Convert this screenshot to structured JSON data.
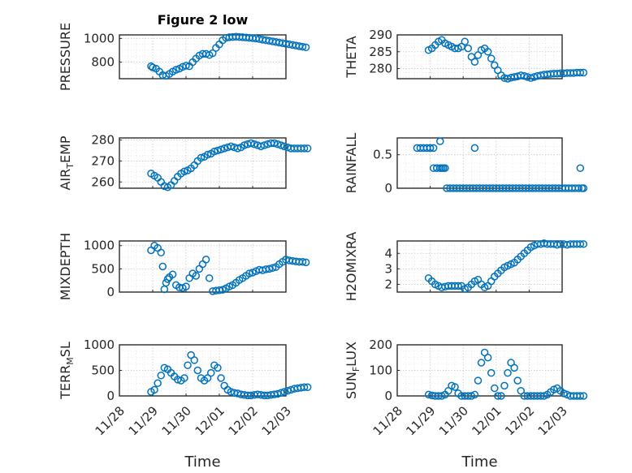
{
  "figure": {
    "title": "Figure 2 low",
    "x_tick_labels": [
      "11/28",
      "11/29",
      "11/30",
      "12/01",
      "12/02",
      "12/03"
    ],
    "x_label": "Time",
    "marker_color": "#0072BD"
  },
  "chart_data": [
    {
      "type": "scatter",
      "ylabel": "PRESSURE",
      "ylim": [
        660,
        1030
      ],
      "yticks": [
        800,
        1000
      ],
      "x": [
        0.95,
        1.0,
        1.1,
        1.2,
        1.3,
        1.4,
        1.5,
        1.6,
        1.7,
        1.8,
        1.9,
        2.0,
        2.1,
        2.2,
        2.3,
        2.4,
        2.5,
        2.6,
        2.7,
        2.8,
        2.9,
        3.0,
        3.1,
        3.2,
        3.3,
        3.4,
        3.5,
        3.6,
        3.7,
        3.8,
        3.9,
        4.0,
        4.1,
        4.2,
        4.3,
        4.4,
        4.5,
        4.6,
        4.7,
        4.8,
        4.9,
        5.0,
        5.1,
        5.2,
        5.3,
        5.4,
        5.5,
        5.6
      ],
      "y": [
        765,
        755,
        745,
        720,
        690,
        685,
        700,
        720,
        735,
        745,
        760,
        770,
        765,
        800,
        830,
        855,
        870,
        870,
        860,
        875,
        920,
        950,
        985,
        1005,
        1010,
        1012,
        1015,
        1012,
        1010,
        1008,
        1005,
        1003,
        1000,
        995,
        990,
        985,
        980,
        975,
        970,
        965,
        960,
        955,
        950,
        945,
        940,
        935,
        930,
        925
      ]
    },
    {
      "type": "scatter",
      "ylabel": "THETA",
      "ylim": [
        277,
        290
      ],
      "yticks": [
        280,
        285,
        290
      ],
      "x": [
        0.95,
        1.05,
        1.15,
        1.25,
        1.35,
        1.45,
        1.55,
        1.65,
        1.75,
        1.85,
        1.95,
        2.05,
        2.15,
        2.25,
        2.35,
        2.45,
        2.55,
        2.65,
        2.75,
        2.85,
        2.95,
        3.05,
        3.15,
        3.25,
        3.35,
        3.45,
        3.55,
        3.65,
        3.75,
        3.85,
        3.95,
        4.05,
        4.15,
        4.25,
        4.35,
        4.45,
        4.55,
        4.65,
        4.75,
        4.85,
        4.95,
        5.05,
        5.15,
        5.25,
        5.35,
        5.45,
        5.55,
        5.65
      ],
      "y": [
        285.5,
        286,
        287,
        288,
        288.5,
        287.5,
        287,
        286.5,
        286,
        286,
        286.5,
        288,
        286,
        283.5,
        282,
        284,
        285.5,
        286,
        285,
        283,
        281,
        279.5,
        278,
        277.2,
        277,
        277.3,
        277.5,
        277.7,
        278,
        277.8,
        277.5,
        277.2,
        277.5,
        277.8,
        278,
        278.2,
        278.3,
        278.4,
        278.5,
        278.5,
        278.6,
        278.6,
        278.7,
        278.7,
        278.7,
        278.8,
        278.8,
        278.8
      ]
    },
    {
      "type": "scatter",
      "ylabel": "AIR_TEMP",
      "ylim": [
        257,
        281
      ],
      "yticks": [
        260,
        270,
        280
      ],
      "x": [
        0.95,
        1.05,
        1.15,
        1.25,
        1.35,
        1.45,
        1.55,
        1.65,
        1.75,
        1.85,
        1.95,
        2.05,
        2.15,
        2.25,
        2.35,
        2.45,
        2.55,
        2.65,
        2.75,
        2.85,
        2.95,
        3.05,
        3.15,
        3.25,
        3.35,
        3.45,
        3.55,
        3.65,
        3.75,
        3.85,
        3.95,
        4.05,
        4.15,
        4.25,
        4.35,
        4.45,
        4.55,
        4.65,
        4.75,
        4.85,
        4.95,
        5.05,
        5.15,
        5.25,
        5.35,
        5.45,
        5.55,
        5.65
      ],
      "y": [
        264,
        263,
        262,
        260,
        258,
        257.5,
        258.5,
        260.5,
        262.5,
        264,
        265,
        265.5,
        266.5,
        268,
        270,
        271.5,
        272,
        273,
        273.5,
        274.5,
        275,
        275.5,
        276,
        276.5,
        277,
        276.5,
        276,
        276.5,
        277.5,
        278,
        278.5,
        278,
        277.5,
        277,
        277.5,
        278,
        278.5,
        278.5,
        278,
        277.5,
        277,
        276.5,
        276,
        276,
        276,
        276,
        276,
        276
      ]
    },
    {
      "type": "scatter",
      "ylabel": "RAINFALL",
      "ylim": [
        0,
        0.75
      ],
      "yticks": [
        0,
        0.5
      ],
      "x": [
        0.6,
        0.7,
        0.8,
        0.9,
        1.0,
        1.1,
        1.2,
        1.3,
        1.4,
        1.5,
        1.6,
        1.7,
        1.8,
        1.9,
        2.0,
        2.1,
        2.2,
        2.3,
        2.4,
        2.5,
        2.6,
        2.7,
        2.8,
        2.9,
        3.0,
        3.1,
        3.2,
        3.3,
        3.4,
        3.5,
        3.6,
        3.7,
        3.8,
        3.9,
        4.0,
        4.1,
        4.2,
        4.3,
        4.4,
        4.5,
        4.6,
        4.7,
        4.8,
        4.9,
        5.0,
        5.1,
        5.2,
        5.3,
        5.4,
        5.5,
        5.6,
        1.0,
        1.1,
        1.2,
        1.3,
        1.35,
        1.45,
        2.35,
        5.55,
        5.65
      ],
      "y": [
        0.6,
        0.6,
        0.6,
        0.6,
        0.6,
        0.3,
        0.3,
        0.3,
        0.3,
        0,
        0,
        0,
        0,
        0,
        0,
        0,
        0,
        0,
        0,
        0,
        0,
        0,
        0,
        0,
        0,
        0,
        0,
        0,
        0,
        0,
        0,
        0,
        0,
        0,
        0,
        0,
        0,
        0,
        0,
        0,
        0,
        0,
        0,
        0,
        0,
        0,
        0,
        0,
        0,
        0,
        0,
        0.6,
        0.6,
        0.3,
        0.7,
        0.3,
        0.3,
        0.6,
        0.3,
        0
      ]
    },
    {
      "type": "scatter",
      "ylabel": "MIXDEPTH",
      "ylim": [
        0,
        1100
      ],
      "yticks": [
        0,
        500,
        1000
      ],
      "x": [
        0.95,
        1.05,
        1.15,
        1.25,
        1.3,
        1.35,
        1.4,
        1.45,
        1.5,
        1.6,
        1.7,
        1.8,
        1.9,
        2.0,
        2.1,
        2.2,
        2.3,
        2.4,
        2.5,
        2.6,
        2.7,
        2.8,
        2.9,
        3.0,
        3.1,
        3.2,
        3.3,
        3.4,
        3.5,
        3.6,
        3.7,
        3.8,
        3.9,
        4.0,
        4.1,
        4.2,
        4.3,
        4.4,
        4.5,
        4.6,
        4.7,
        4.8,
        4.9,
        5.0,
        5.1,
        5.2,
        5.3,
        5.4,
        5.5,
        5.6
      ],
      "y": [
        900,
        1000,
        950,
        850,
        550,
        60,
        200,
        280,
        320,
        380,
        150,
        100,
        90,
        120,
        300,
        400,
        350,
        500,
        600,
        700,
        300,
        20,
        30,
        40,
        50,
        80,
        120,
        150,
        200,
        260,
        300,
        350,
        400,
        420,
        450,
        480,
        470,
        490,
        500,
        520,
        540,
        600,
        650,
        700,
        680,
        670,
        660,
        650,
        650,
        640
      ]
    },
    {
      "type": "scatter",
      "ylabel": "H2OMIXRA",
      "ylim": [
        1.5,
        4.8
      ],
      "yticks": [
        2,
        3,
        4
      ],
      "x": [
        0.95,
        1.05,
        1.15,
        1.25,
        1.35,
        1.45,
        1.55,
        1.65,
        1.75,
        1.85,
        1.95,
        2.05,
        2.15,
        2.25,
        2.35,
        2.45,
        2.55,
        2.65,
        2.75,
        2.85,
        2.95,
        3.05,
        3.15,
        3.25,
        3.35,
        3.45,
        3.55,
        3.65,
        3.75,
        3.85,
        3.95,
        4.05,
        4.15,
        4.25,
        4.35,
        4.45,
        4.55,
        4.65,
        4.75,
        4.85,
        4.95,
        5.05,
        5.15,
        5.25,
        5.35,
        5.45,
        5.55,
        5.65
      ],
      "y": [
        2.4,
        2.2,
        2.0,
        1.9,
        1.8,
        1.85,
        1.9,
        1.9,
        1.9,
        1.9,
        1.9,
        1.7,
        1.8,
        2.0,
        2.2,
        2.3,
        2.0,
        1.8,
        1.9,
        2.2,
        2.5,
        2.7,
        2.9,
        3.1,
        3.2,
        3.3,
        3.4,
        3.6,
        3.8,
        4.0,
        4.2,
        4.4,
        4.5,
        4.6,
        4.6,
        4.65,
        4.6,
        4.6,
        4.6,
        4.55,
        4.6,
        4.6,
        4.55,
        4.6,
        4.6,
        4.6,
        4.6,
        4.6
      ]
    },
    {
      "type": "scatter",
      "ylabel": "TERR_MSL",
      "ylim": [
        0,
        1000
      ],
      "yticks": [
        0,
        500,
        1000
      ],
      "x": [
        0.95,
        1.05,
        1.15,
        1.25,
        1.35,
        1.45,
        1.55,
        1.65,
        1.75,
        1.85,
        1.95,
        2.05,
        2.15,
        2.25,
        2.35,
        2.45,
        2.55,
        2.65,
        2.75,
        2.85,
        2.95,
        3.05,
        3.15,
        3.25,
        3.35,
        3.45,
        3.55,
        3.65,
        3.75,
        3.85,
        3.95,
        4.05,
        4.15,
        4.25,
        4.35,
        4.45,
        4.55,
        4.65,
        4.75,
        4.85,
        4.95,
        5.05,
        5.15,
        5.25,
        5.35,
        5.45,
        5.55,
        5.65
      ],
      "y": [
        80,
        120,
        250,
        400,
        550,
        520,
        450,
        380,
        320,
        300,
        350,
        600,
        800,
        700,
        500,
        350,
        300,
        350,
        450,
        600,
        550,
        350,
        200,
        120,
        80,
        60,
        50,
        30,
        20,
        10,
        10,
        20,
        30,
        20,
        10,
        10,
        20,
        30,
        40,
        60,
        80,
        100,
        120,
        140,
        150,
        160,
        170,
        170
      ]
    },
    {
      "type": "scatter",
      "ylabel": "SUN_FLUX",
      "ylim": [
        0,
        200
      ],
      "yticks": [
        0,
        100,
        200
      ],
      "x": [
        0.95,
        1.05,
        1.15,
        1.25,
        1.35,
        1.45,
        1.55,
        1.65,
        1.75,
        1.85,
        1.95,
        2.05,
        2.15,
        2.25,
        2.35,
        2.45,
        2.55,
        2.65,
        2.75,
        2.85,
        2.95,
        3.05,
        3.15,
        3.25,
        3.35,
        3.45,
        3.55,
        3.65,
        3.75,
        3.85,
        3.95,
        4.05,
        4.15,
        4.25,
        4.35,
        4.45,
        4.55,
        4.65,
        4.75,
        4.85,
        4.95,
        5.05,
        5.15,
        5.25,
        5.35,
        5.45,
        5.55,
        5.65
      ],
      "y": [
        5,
        2,
        0,
        0,
        0,
        5,
        20,
        40,
        35,
        10,
        0,
        0,
        0,
        0,
        5,
        60,
        130,
        170,
        150,
        90,
        30,
        0,
        0,
        40,
        90,
        130,
        110,
        60,
        20,
        0,
        0,
        0,
        0,
        0,
        0,
        0,
        5,
        15,
        25,
        30,
        20,
        10,
        5,
        0,
        0,
        0,
        0,
        0
      ]
    }
  ]
}
